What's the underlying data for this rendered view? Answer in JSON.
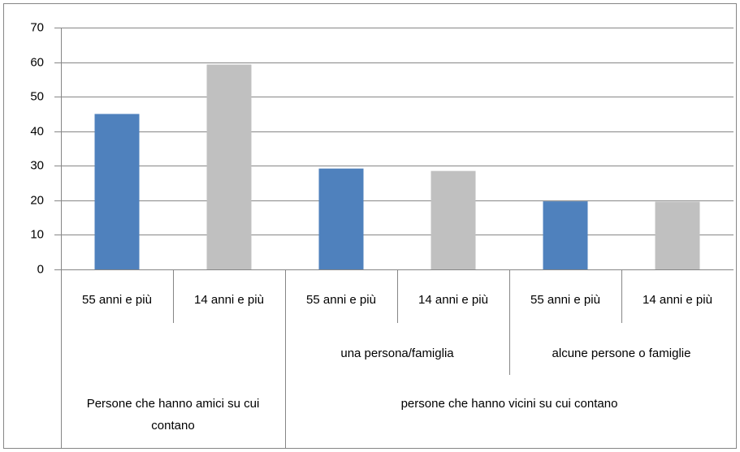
{
  "chart_data": {
    "type": "bar",
    "categories": [
      "55 anni e più",
      "14 anni e più",
      "55 anni e più",
      "14 anni e più",
      "55 anni e più",
      "14 anni e più"
    ],
    "values": [
      45,
      59.3,
      29.2,
      28.5,
      19.7,
      19.6
    ],
    "colors": [
      "#4f81bd",
      "#c0c0c0",
      "#4f81bd",
      "#c0c0c0",
      "#4f81bd",
      "#c0c0c0"
    ],
    "groups": [
      {
        "name": "Persone che hanno amici su cui contano",
        "subgroups": [
          null
        ]
      },
      {
        "name": "persone che hanno vicini su cui contano",
        "subgroups": [
          "una persona/famiglia",
          "alcune persone o famiglie"
        ]
      }
    ],
    "ylim": [
      0,
      70
    ],
    "yticks": [
      0,
      10,
      20,
      30,
      40,
      50,
      60,
      70
    ],
    "grid": true
  }
}
